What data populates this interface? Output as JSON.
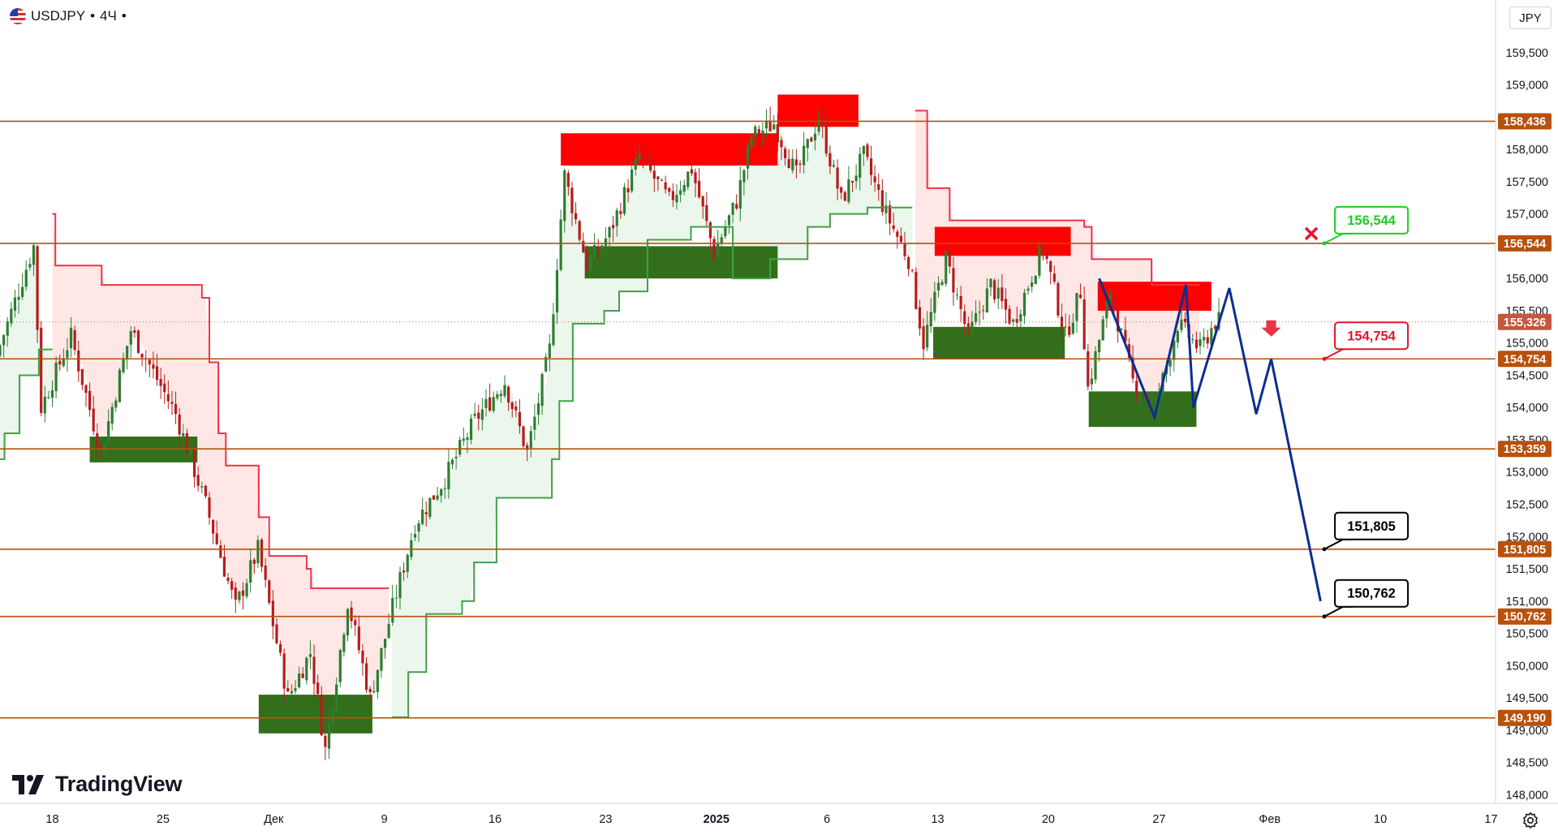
{
  "toolbar": {
    "symbol": "USDJPY",
    "interval": "4Ч",
    "flag_icon": "us-flag-icon",
    "currency_button": "JPY",
    "settings_icon": "gear-icon"
  },
  "branding": {
    "logo_icon": "tradingview-logo-icon",
    "name": "TradingView"
  },
  "colors": {
    "background": "#ffffff",
    "level_line": "#b8510c",
    "level_tag_bg": "#b8510c",
    "bull_candle": "#2e7d32",
    "bear_candle": "#b71c1c",
    "supply_zone": "#ff0000",
    "demand_zone": "#336f1a",
    "trail_red": "#ef3347",
    "trail_green": "#43a047",
    "forecast_path": "#0d2d8f",
    "target_red": "#e5152f",
    "target_green": "#22cc22",
    "target_black": "#000000"
  },
  "chart_data": {
    "type": "candlestick",
    "symbol": "USDJPY",
    "timeframe": "4Ч",
    "currency": "JPY",
    "x_ticks": [
      "18",
      "25",
      "Дек",
      "9",
      "16",
      "23",
      "2025",
      "6",
      "13",
      "20",
      "27",
      "Фев",
      "10",
      "17"
    ],
    "y_ticks": [
      "159,500",
      "159,000",
      "158,500",
      "158,000",
      "157,500",
      "157,000",
      "156,500",
      "156,000",
      "155,500",
      "155,000",
      "154,500",
      "154,000",
      "153,500",
      "153,000",
      "152,500",
      "152,000",
      "151,500",
      "151,000",
      "150,500",
      "150,000",
      "149,500",
      "149,000",
      "148,500",
      "148,000"
    ],
    "ylim": [
      147.75,
      159.95
    ],
    "current_price": "155,326",
    "horizontal_levels": [
      "158,436",
      "156,544",
      "154,754",
      "153,359",
      "151,805",
      "150,762",
      "149,190"
    ],
    "price_path": [
      [
        0,
        154.8
      ],
      [
        2.5,
        156.5
      ],
      [
        3,
        154.0
      ],
      [
        5,
        155.1
      ],
      [
        7,
        153.3
      ],
      [
        9,
        155.2
      ],
      [
        12,
        153.9
      ],
      [
        14,
        152.5
      ],
      [
        16,
        150.9
      ],
      [
        17.5,
        151.8
      ],
      [
        19.5,
        149.5
      ],
      [
        21,
        150.2
      ],
      [
        22,
        148.7
      ],
      [
        23.5,
        151.0
      ],
      [
        25,
        149.5
      ],
      [
        26.5,
        150.9
      ],
      [
        28,
        152.2
      ],
      [
        30,
        152.9
      ],
      [
        32,
        153.8
      ],
      [
        34,
        154.4
      ],
      [
        35.5,
        153.3
      ],
      [
        37,
        154.9
      ],
      [
        38,
        157.6
      ],
      [
        39.5,
        156.2
      ],
      [
        41,
        156.7
      ],
      [
        43,
        157.9
      ],
      [
        45,
        157.2
      ],
      [
        46.5,
        157.7
      ],
      [
        48,
        156.4
      ],
      [
        49.5,
        157.2
      ],
      [
        50.5,
        158.2
      ],
      [
        52,
        158.4
      ],
      [
        53.5,
        157.6
      ],
      [
        55,
        158.5
      ],
      [
        56.5,
        157.2
      ],
      [
        58,
        157.9
      ],
      [
        59.5,
        157.0
      ],
      [
        61,
        156.3
      ],
      [
        62,
        155.0
      ],
      [
        63.5,
        156.3
      ],
      [
        65,
        155.1
      ],
      [
        66.5,
        155.9
      ],
      [
        68,
        155.3
      ],
      [
        70,
        156.5
      ],
      [
        71.5,
        155.1
      ],
      [
        72.5,
        155.8
      ],
      [
        73,
        154.3
      ],
      [
        74.5,
        155.8
      ],
      [
        76,
        154.4
      ],
      [
        77.5,
        154.0
      ],
      [
        79,
        155.3
      ],
      [
        80.5,
        154.9
      ],
      [
        81.5,
        155.33
      ]
    ],
    "trailing_bands": [
      {
        "color": "red",
        "segments": [
          [
            [
              3.5,
              157.0
            ],
            [
              3.7,
              156.2
            ],
            [
              6.8,
              155.9
            ],
            [
              13.5,
              155.7
            ],
            [
              14.0,
              154.7
            ],
            [
              14.6,
              153.6
            ],
            [
              15.1,
              153.1
            ],
            [
              17.3,
              152.3
            ],
            [
              18.0,
              151.7
            ],
            [
              20.5,
              151.5
            ],
            [
              20.8,
              151.2
            ],
            [
              26.0,
              151.2
            ]
          ],
          [
            [
              61.2,
              158.6
            ],
            [
              62.0,
              157.4
            ],
            [
              63.5,
              156.9
            ],
            [
              72.5,
              156.8
            ],
            [
              73.0,
              156.3
            ],
            [
              77.0,
              155.9
            ],
            [
              80.2,
              155.9
            ]
          ]
        ]
      },
      {
        "color": "green",
        "segments": [
          [
            [
              0,
              153.2
            ],
            [
              0.3,
              153.6
            ],
            [
              1.3,
              154.5
            ],
            [
              2.6,
              154.9
            ],
            [
              3.5,
              154.9
            ]
          ],
          [
            [
              26.2,
              149.2
            ],
            [
              27.3,
              149.9
            ],
            [
              28.5,
              150.8
            ],
            [
              30.9,
              151.0
            ],
            [
              31.7,
              151.6
            ],
            [
              33.2,
              152.6
            ],
            [
              36.9,
              153.2
            ],
            [
              37.4,
              154.1
            ],
            [
              38.3,
              155.3
            ],
            [
              40.4,
              155.5
            ],
            [
              41.4,
              155.8
            ],
            [
              43.3,
              156.6
            ],
            [
              46.2,
              156.8
            ],
            [
              49.0,
              156.0
            ],
            [
              51.5,
              156.3
            ],
            [
              54.0,
              156.8
            ],
            [
              55.5,
              157.0
            ],
            [
              58.0,
              157.1
            ],
            [
              61.0,
              157.1
            ]
          ]
        ]
      }
    ],
    "supply_zones": [
      {
        "x_start": 37.5,
        "x_end": 52.0,
        "y_low": 157.75,
        "y_high": 158.25
      },
      {
        "x_start": 52.0,
        "x_end": 57.4,
        "y_low": 158.35,
        "y_high": 158.85
      },
      {
        "x_start": 62.5,
        "x_end": 71.6,
        "y_low": 156.35,
        "y_high": 156.8
      },
      {
        "x_start": 73.4,
        "x_end": 81.0,
        "y_low": 155.5,
        "y_high": 155.95
      }
    ],
    "demand_zones": [
      {
        "x_start": 6.0,
        "x_end": 13.2,
        "y_low": 153.15,
        "y_high": 153.55
      },
      {
        "x_start": 17.3,
        "x_end": 24.9,
        "y_low": 148.95,
        "y_high": 149.55
      },
      {
        "x_start": 39.1,
        "x_end": 52.0,
        "y_low": 156.0,
        "y_high": 156.5
      },
      {
        "x_start": 62.4,
        "x_end": 71.2,
        "y_low": 154.75,
        "y_high": 155.25
      },
      {
        "x_start": 72.8,
        "x_end": 80.0,
        "y_low": 153.7,
        "y_high": 154.25
      }
    ],
    "forecast_path": [
      [
        73.5,
        156.0
      ],
      [
        77.2,
        153.85
      ],
      [
        79.3,
        155.9
      ],
      [
        79.8,
        154.0
      ],
      [
        82.2,
        155.85
      ],
      [
        84.0,
        153.9
      ],
      [
        85.0,
        154.75
      ],
      [
        88.3,
        151.0
      ]
    ],
    "target_labels": [
      {
        "text": "156,544",
        "price": 156.544,
        "x": 88.5,
        "style": "green",
        "marker": "cross-icon"
      },
      {
        "text": "154,754",
        "price": 154.754,
        "x": 88.5,
        "style": "red",
        "marker": "down-arrow-icon"
      },
      {
        "text": "151,805",
        "price": 151.805,
        "x": 88.5,
        "style": "black"
      },
      {
        "text": "150,762",
        "price": 150.762,
        "x": 88.5,
        "style": "black"
      }
    ]
  }
}
